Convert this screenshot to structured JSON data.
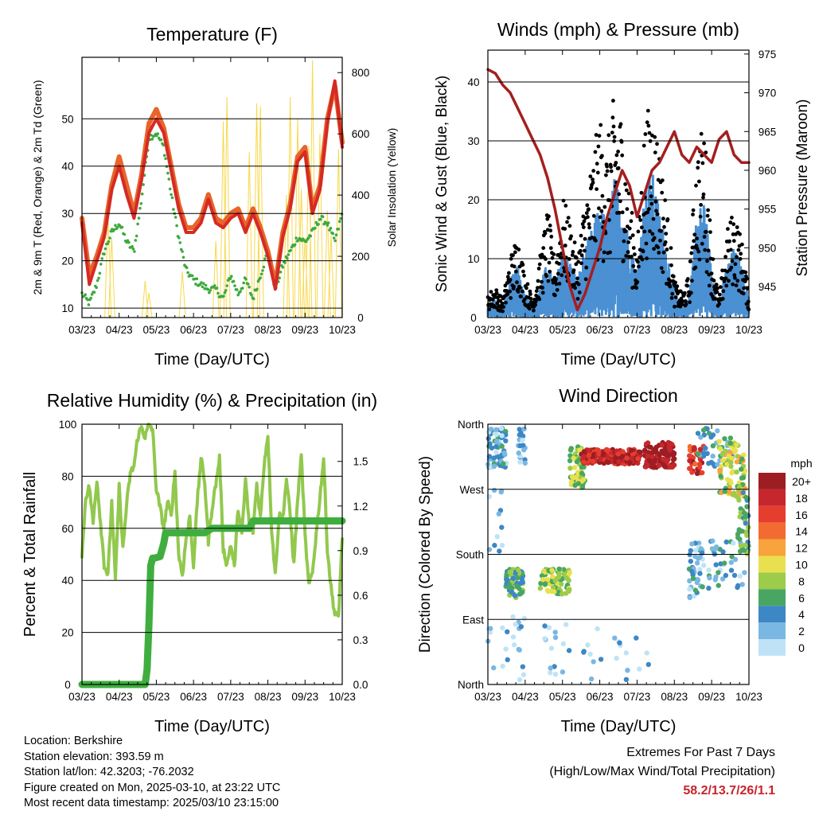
{
  "colors": {
    "t2m": "#e8642a",
    "t9m": "#d52a24",
    "td": "#3daa3d",
    "solar": "#f7d84a",
    "gust": "#000000",
    "wind": "#4a90d2",
    "pressure": "#a41f1f",
    "rh": "#92c84e",
    "precip": "#3fae3f"
  },
  "time_ticks": [
    "03/23",
    "04/23",
    "05/23",
    "06/23",
    "07/23",
    "08/23",
    "09/23",
    "10/23"
  ],
  "chart_data": [
    {
      "id": "temperature",
      "type": "line",
      "title": "Temperature (F)",
      "xlabel": "Time (Day/UTC)",
      "ylabel": "2m & 9m T (Red, Orange) & 2m Td (Green)",
      "ylabel_right": "Solar Insolation (Yellow)",
      "ylim": [
        8,
        63
      ],
      "yticks": [
        10,
        20,
        30,
        40,
        50
      ],
      "ylim_right": [
        0,
        850
      ],
      "yticks_right": [
        0,
        200,
        400,
        600,
        800
      ],
      "xlim": [
        0,
        7
      ],
      "series": [
        {
          "name": "2m T",
          "color": "#e8642a",
          "x": [
            0,
            0.2,
            0.4,
            0.6,
            0.8,
            1.0,
            1.2,
            1.4,
            1.6,
            1.8,
            2.0,
            2.2,
            2.4,
            2.6,
            2.8,
            3.0,
            3.2,
            3.4,
            3.6,
            3.8,
            4.0,
            4.2,
            4.4,
            4.6,
            4.8,
            5.0,
            5.2,
            5.4,
            5.6,
            5.8,
            6.0,
            6.2,
            6.4,
            6.6,
            6.8,
            7.0
          ],
          "values": [
            29,
            17,
            21,
            26,
            36,
            42,
            36,
            30,
            38,
            49,
            52,
            48,
            40,
            32,
            27,
            27,
            29,
            34,
            29,
            28,
            30,
            31,
            27,
            31,
            27,
            22,
            15,
            26,
            32,
            42,
            44,
            31,
            36,
            50,
            57,
            45
          ]
        },
        {
          "name": "9m T",
          "color": "#d52a24",
          "x": [
            0,
            0.2,
            0.4,
            0.6,
            0.8,
            1.0,
            1.2,
            1.4,
            1.6,
            1.8,
            2.0,
            2.2,
            2.4,
            2.6,
            2.8,
            3.0,
            3.2,
            3.4,
            3.6,
            3.8,
            4.0,
            4.2,
            4.4,
            4.6,
            4.8,
            5.0,
            5.2,
            5.4,
            5.6,
            5.8,
            6.0,
            6.2,
            6.4,
            6.6,
            6.8,
            7.0
          ],
          "values": [
            28,
            15,
            20,
            25,
            35,
            40,
            34,
            29,
            37,
            47,
            50,
            47,
            39,
            31,
            26,
            26,
            28,
            33,
            28,
            27,
            29,
            30,
            26,
            30,
            26,
            21,
            14,
            25,
            31,
            41,
            43,
            30,
            35,
            49,
            58,
            44
          ]
        },
        {
          "name": "2m Td",
          "color": "#3daa3d",
          "x": [
            0,
            0.2,
            0.4,
            0.6,
            0.8,
            1.0,
            1.2,
            1.4,
            1.6,
            1.8,
            2.0,
            2.2,
            2.4,
            2.6,
            2.8,
            3.0,
            3.2,
            3.4,
            3.6,
            3.8,
            4.0,
            4.2,
            4.4,
            4.6,
            4.8,
            5.0,
            5.2,
            5.4,
            5.6,
            5.8,
            6.0,
            6.2,
            6.4,
            6.6,
            6.8,
            7.0
          ],
          "values": [
            13,
            11,
            15,
            22,
            26,
            28,
            24,
            22,
            33,
            46,
            47,
            44,
            34,
            25,
            18,
            16,
            15,
            14,
            14,
            12,
            17,
            13,
            16,
            12,
            17,
            22,
            14,
            19,
            22,
            25,
            24,
            26,
            29,
            28,
            24,
            30
          ]
        }
      ],
      "solar": {
        "name": "Solar Insolation",
        "color": "#f7d84a",
        "x": [
          0.7,
          0.8,
          1.7,
          1.8,
          2.7,
          3.6,
          3.8,
          3.9,
          4.5,
          4.7,
          4.8,
          5.5,
          5.6,
          5.8,
          5.9,
          6.0,
          6.1,
          6.2,
          6.4,
          6.6,
          6.7,
          6.9
        ],
        "values": [
          350,
          260,
          120,
          80,
          150,
          250,
          640,
          720,
          540,
          700,
          690,
          400,
          720,
          650,
          420,
          260,
          560,
          840,
          600,
          350,
          270,
          550
        ]
      }
    },
    {
      "id": "winds",
      "type": "scatter",
      "title": "Winds (mph) & Pressure (mb)",
      "xlabel": "Time (Day/UTC)",
      "ylabel": "Sonic Wind & Gust (Blue, Black)",
      "ylabel_right": "Station Pressure (Maroon)",
      "ylim": [
        0,
        45.4
      ],
      "yticks": [
        0,
        10,
        20,
        30,
        40
      ],
      "ylim_right": [
        941,
        975.5
      ],
      "yticks_right": [
        945,
        950,
        955,
        960,
        965,
        970,
        975
      ],
      "xlim": [
        0,
        7
      ],
      "gust_envelope": {
        "x": [
          0,
          0.2,
          0.4,
          0.6,
          0.8,
          1.0,
          1.2,
          1.4,
          1.6,
          1.8,
          2.0,
          2.2,
          2.4,
          2.6,
          2.8,
          3.0,
          3.2,
          3.4,
          3.6,
          3.8,
          4.0,
          4.2,
          4.4,
          4.6,
          4.8,
          5.0,
          5.2,
          5.4,
          5.6,
          5.8,
          6.0,
          6.2,
          6.4,
          6.6,
          6.8,
          7.0
        ],
        "values": [
          4,
          5,
          3,
          10,
          14,
          7,
          3,
          10,
          18,
          9,
          20,
          16,
          10,
          20,
          26,
          33,
          28,
          37,
          33,
          20,
          11,
          32,
          36,
          28,
          18,
          6,
          4,
          7,
          28,
          32,
          12,
          3,
          14,
          18,
          13,
          4
        ]
      },
      "wind_envelope": {
        "x": [
          0,
          0.2,
          0.4,
          0.6,
          0.8,
          1.0,
          1.2,
          1.4,
          1.6,
          1.8,
          2.0,
          2.2,
          2.4,
          2.6,
          2.8,
          3.0,
          3.2,
          3.4,
          3.6,
          3.8,
          4.0,
          4.2,
          4.4,
          4.6,
          4.8,
          5.0,
          5.2,
          5.4,
          5.6,
          5.8,
          6.0,
          6.2,
          6.4,
          6.6,
          6.8,
          7.0
        ],
        "values": [
          2,
          3,
          2,
          6,
          8,
          4,
          2,
          5,
          9,
          5,
          11,
          9,
          6,
          11,
          14,
          18,
          15,
          22,
          19,
          12,
          7,
          20,
          23,
          17,
          11,
          4,
          2,
          4,
          16,
          19,
          7,
          2,
          8,
          11,
          8,
          3
        ]
      },
      "pressure": {
        "name": "Station Pressure",
        "color": "#a41f1f",
        "x": [
          0,
          0.2,
          0.4,
          0.6,
          0.8,
          1.0,
          1.2,
          1.4,
          1.6,
          1.8,
          2.0,
          2.2,
          2.4,
          2.6,
          2.8,
          3.0,
          3.2,
          3.4,
          3.6,
          3.8,
          4.0,
          4.2,
          4.4,
          4.6,
          4.8,
          5.0,
          5.2,
          5.4,
          5.6,
          5.8,
          6.0,
          6.2,
          6.4,
          6.6,
          6.8,
          7.0
        ],
        "values": [
          973,
          972.5,
          971,
          970,
          968,
          966,
          964,
          962,
          959,
          955,
          950,
          945,
          942,
          944,
          947,
          950,
          954,
          957,
          960,
          958,
          954,
          957,
          960,
          961,
          963,
          965,
          962,
          961,
          963,
          962,
          961,
          964,
          965,
          962,
          961,
          961
        ]
      }
    },
    {
      "id": "humidity",
      "type": "line",
      "title": "Relative Humidity (%) & Precipitation (in)",
      "xlabel": "Time (Day/UTC)",
      "ylabel": "Percent & Total Rainfall",
      "ylim": [
        0,
        100
      ],
      "yticks": [
        0,
        20,
        40,
        60,
        80,
        100
      ],
      "ylim_right": [
        0,
        1.75
      ],
      "yticks_right": [
        "0.0",
        "0.3",
        "0.6",
        "0.9",
        "1.2",
        "1.5"
      ],
      "xlim": [
        0,
        7
      ],
      "rh": {
        "name": "Relative Humidity",
        "color": "#92c84e",
        "x": [
          0,
          0.1,
          0.2,
          0.3,
          0.4,
          0.5,
          0.6,
          0.7,
          0.8,
          0.9,
          1.0,
          1.1,
          1.2,
          1.3,
          1.4,
          1.5,
          1.6,
          1.7,
          1.8,
          1.9,
          2.0,
          2.1,
          2.2,
          2.3,
          2.4,
          2.5,
          2.6,
          2.7,
          2.8,
          2.9,
          3.0,
          3.1,
          3.2,
          3.3,
          3.4,
          3.5,
          3.6,
          3.7,
          3.8,
          3.9,
          4.0,
          4.1,
          4.2,
          4.3,
          4.4,
          4.5,
          4.6,
          4.7,
          4.8,
          4.9,
          5.0,
          5.1,
          5.2,
          5.3,
          5.4,
          5.5,
          5.6,
          5.7,
          5.8,
          5.9,
          6.0,
          6.1,
          6.2,
          6.3,
          6.4,
          6.5,
          6.6,
          6.7,
          6.8,
          6.9,
          7.0
        ],
        "values": [
          49,
          72,
          76,
          62,
          79,
          62,
          46,
          42,
          70,
          40,
          76,
          52,
          69,
          81,
          84,
          95,
          99,
          95,
          100,
          98,
          75,
          68,
          60,
          70,
          65,
          82,
          50,
          42,
          56,
          64,
          46,
          70,
          87,
          78,
          55,
          68,
          77,
          87,
          52,
          46,
          54,
          45,
          68,
          57,
          79,
          61,
          59,
          77,
          64,
          85,
          96,
          60,
          42,
          65,
          64,
          79,
          65,
          46,
          71,
          88,
          57,
          38,
          43,
          58,
          72,
          87,
          52,
          37,
          27,
          26,
          57
        ]
      },
      "precip": {
        "name": "Total Precipitation",
        "color": "#3fae3f",
        "x": [
          0,
          1.7,
          1.75,
          1.8,
          1.85,
          1.9,
          1.95,
          2.1,
          2.2,
          2.25,
          2.4,
          3.3,
          3.5,
          4.5,
          4.6,
          7.0
        ],
        "values": [
          0,
          0,
          0.1,
          0.4,
          0.8,
          0.85,
          0.85,
          0.86,
          0.95,
          1.02,
          1.02,
          1.02,
          1.05,
          1.05,
          1.1,
          1.1
        ]
      }
    },
    {
      "id": "wind_direction",
      "type": "scatter",
      "title": "Wind Direction",
      "xlabel": "Time (Day/UTC)",
      "ylabel": "Direction (Colored By Speed)",
      "y_categories": [
        "North",
        "East",
        "South",
        "West",
        "North"
      ],
      "ylim": [
        0,
        360
      ],
      "yticks": [
        0,
        90,
        180,
        270,
        360
      ],
      "xlim": [
        0,
        7
      ],
      "speed_legend": {
        "title": "mph",
        "labels": [
          "20+",
          "18",
          "16",
          "14",
          "12",
          "10",
          "8",
          "6",
          "4",
          "2",
          "0"
        ],
        "colors": [
          "#9c1d22",
          "#c6272c",
          "#e53e2f",
          "#f26b30",
          "#f8a33c",
          "#e9e04f",
          "#9ccc4a",
          "#49a662",
          "#3d87c5",
          "#7ab7e2",
          "#bfe3f6"
        ]
      },
      "clusters": [
        {
          "x0": 0.0,
          "x1": 0.5,
          "dir_lo": 300,
          "dir_hi": 355,
          "spd": 3,
          "n": 60
        },
        {
          "x0": 0.0,
          "x1": 0.5,
          "dir_lo": 180,
          "dir_hi": 280,
          "spd": 1,
          "n": 12
        },
        {
          "x0": 0.0,
          "x1": 0.5,
          "dir_lo": 5,
          "dir_hi": 80,
          "spd": 0,
          "n": 8
        },
        {
          "x0": 0.8,
          "x1": 1.0,
          "dir_lo": 300,
          "dir_hi": 355,
          "spd": 2,
          "n": 20
        },
        {
          "x0": 0.45,
          "x1": 0.95,
          "dir_lo": 120,
          "dir_hi": 160,
          "spd": 6,
          "n": 70
        },
        {
          "x0": 0.5,
          "x1": 1.0,
          "dir_lo": 5,
          "dir_hi": 100,
          "spd": 1,
          "n": 15
        },
        {
          "x0": 1.4,
          "x1": 2.2,
          "dir_lo": 125,
          "dir_hi": 160,
          "spd": 8,
          "n": 80
        },
        {
          "x0": 1.4,
          "x1": 2.2,
          "dir_lo": 10,
          "dir_hi": 90,
          "spd": 1,
          "n": 15
        },
        {
          "x0": 2.2,
          "x1": 2.6,
          "dir_lo": 270,
          "dir_hi": 330,
          "spd": 8,
          "n": 60
        },
        {
          "x0": 2.5,
          "x1": 4.1,
          "dir_lo": 305,
          "dir_hi": 325,
          "spd": 18,
          "n": 220
        },
        {
          "x0": 4.2,
          "x1": 5.0,
          "dir_lo": 300,
          "dir_hi": 335,
          "spd": 20,
          "n": 120
        },
        {
          "x0": 5.4,
          "x1": 5.8,
          "dir_lo": 290,
          "dir_hi": 330,
          "spd": 17,
          "n": 40
        },
        {
          "x0": 5.4,
          "x1": 5.8,
          "dir_lo": 120,
          "dir_hi": 200,
          "spd": 3,
          "n": 40
        },
        {
          "x0": 5.6,
          "x1": 6.6,
          "dir_lo": 300,
          "dir_hi": 355,
          "spd": 4,
          "n": 40
        },
        {
          "x0": 6.2,
          "x1": 6.9,
          "dir_lo": 260,
          "dir_hi": 340,
          "spd": 9,
          "n": 80
        },
        {
          "x0": 5.9,
          "x1": 7.0,
          "dir_lo": 130,
          "dir_hi": 200,
          "spd": 3,
          "n": 40
        },
        {
          "x0": 6.7,
          "x1": 7.0,
          "dir_lo": 180,
          "dir_hi": 280,
          "spd": 6,
          "n": 40
        },
        {
          "x0": 2.5,
          "x1": 4.5,
          "dir_lo": 5,
          "dir_hi": 80,
          "spd": 1,
          "n": 20
        }
      ]
    }
  ],
  "station_info": [
    "Location: Berkshire",
    "Station elevation: 393.59 m",
    "Station lat/lon: 42.3203; -76.2032",
    "Figure created on Mon, 2025-03-10, at 23:22 UTC",
    "Most recent data timestamp: 2025/03/10 23:15:00"
  ],
  "extremes": {
    "title": "Extremes For Past 7 Days",
    "subtitle": "(High/Low/Max Wind/Total Precipitation)",
    "values": "58.2/13.7/26/1.1"
  }
}
